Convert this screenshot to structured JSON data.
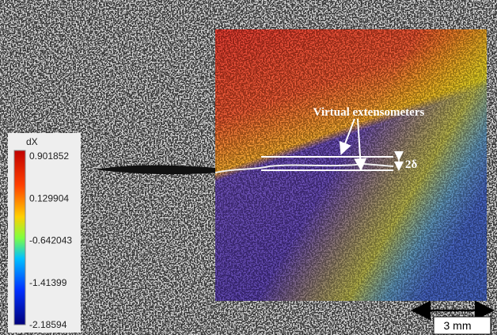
{
  "colorbar": {
    "title": "dX",
    "labels": [
      "0.901852",
      "0.129904",
      "-0.642043",
      "-1.41399",
      "-2.18594"
    ]
  },
  "annotations": {
    "extensometers": "Virtual extensometers",
    "opening": "2δ"
  },
  "scale_bar": {
    "label": "3 mm"
  }
}
